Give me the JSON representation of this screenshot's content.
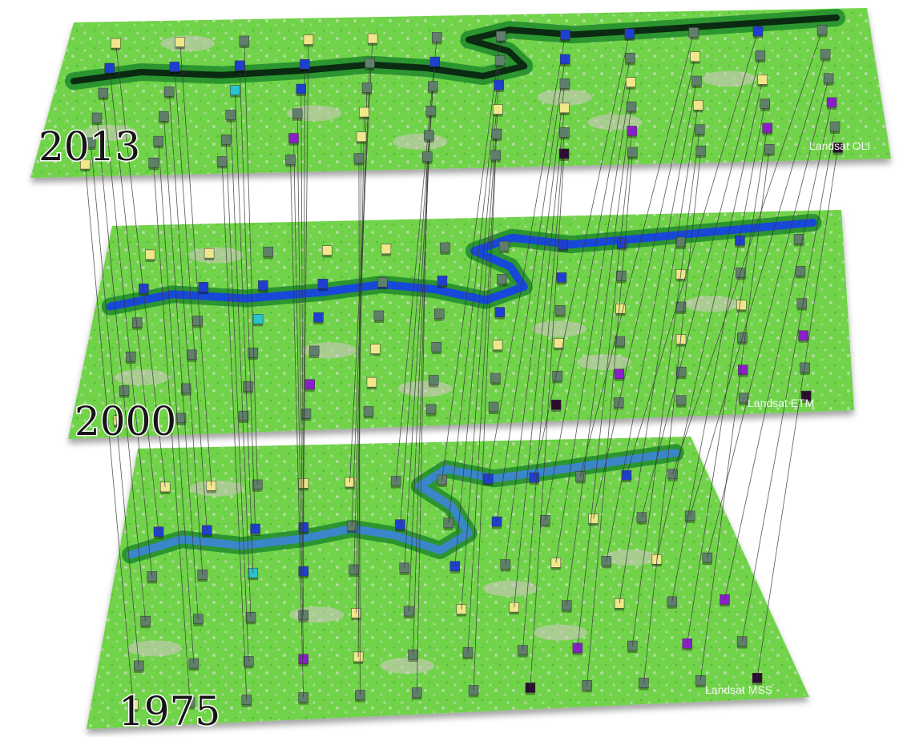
{
  "figure": {
    "layers": [
      {
        "id": "layer-2013",
        "year": "2013",
        "sensor": "Landsat OLI"
      },
      {
        "id": "layer-2000",
        "year": "2000",
        "sensor": "Landsat ETM"
      },
      {
        "id": "layer-1975",
        "year": "1975",
        "sensor": "Landsat MSS"
      }
    ],
    "marker_colors": {
      "grey": "#5f7f6a",
      "yellow": "#f0e68a",
      "blue": "#1f3fd0",
      "cyan": "#27c4cf",
      "purple": "#8a1fc9",
      "dark": "#2a0f30"
    },
    "landscape_colors": {
      "base": "#6fd34a",
      "vegetation_dense": "#1f8a2a",
      "water_2013": "#0a2a12",
      "water_2000": "#1848d8",
      "water_1975": "#3a86c8",
      "bare": "#d9c6cc"
    }
  }
}
